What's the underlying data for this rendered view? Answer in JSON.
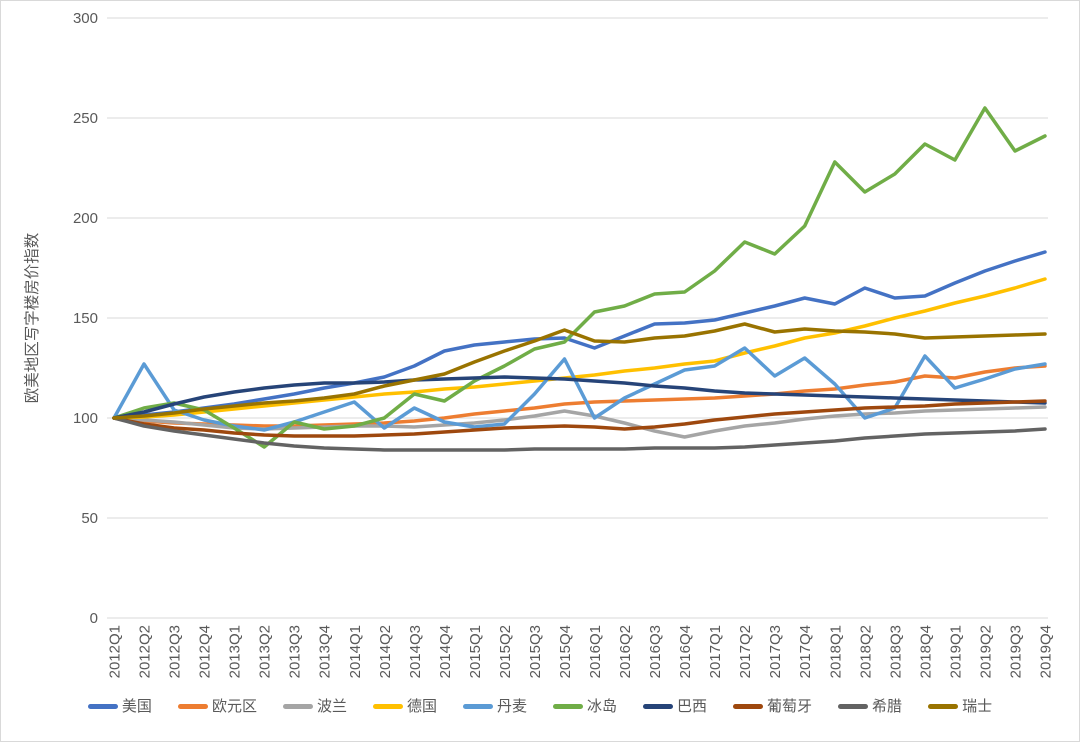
{
  "chart_data": {
    "type": "line",
    "title": "",
    "ylabel": "欧美地区写字楼房价指数",
    "xlabel": "",
    "ylim": [
      0,
      300
    ],
    "yticks": [
      0,
      50,
      100,
      150,
      200,
      250,
      300
    ],
    "grid": "horizontal",
    "gridline_color": "#d9d9d9",
    "text_color": "#595959",
    "legend_position": "bottom",
    "categories": [
      "2012Q1",
      "2012Q2",
      "2012Q3",
      "2012Q4",
      "2013Q1",
      "2013Q2",
      "2013Q3",
      "2013Q4",
      "2014Q1",
      "2014Q2",
      "2014Q3",
      "2014Q4",
      "2015Q1",
      "2015Q2",
      "2015Q3",
      "2015Q4",
      "2016Q1",
      "2016Q2",
      "2016Q3",
      "2016Q4",
      "2017Q1",
      "2017Q2",
      "2017Q3",
      "2017Q4",
      "2018Q1",
      "2018Q2",
      "2018Q3",
      "2018Q4",
      "2019Q1",
      "2019Q2",
      "2019Q3",
      "2019Q4"
    ],
    "series": [
      {
        "key": "usa",
        "name": "美国",
        "color": "#4472C4",
        "values": [
          100,
          101.5,
          103,
          105,
          107,
          109.5,
          112,
          115,
          117.5,
          120.5,
          126,
          133.5,
          136.5,
          138,
          139.5,
          140,
          135,
          141,
          147,
          147.5,
          149,
          152.5,
          156,
          160,
          157,
          165,
          160,
          161,
          167.5,
          173.5,
          178.5,
          183
        ]
      },
      {
        "key": "eurozone",
        "name": "欧元区",
        "color": "#ED7D31",
        "values": [
          100,
          98.5,
          97.5,
          97,
          96.5,
          96,
          96,
          96.5,
          97,
          97.5,
          98.5,
          100,
          102,
          103.5,
          105,
          107,
          108,
          108.5,
          109,
          109.5,
          110,
          111,
          112,
          113.5,
          114.5,
          116.5,
          118,
          121,
          120,
          123,
          125,
          126
        ]
      },
      {
        "key": "poland",
        "name": "波兰",
        "color": "#A5A5A5",
        "values": [
          100,
          99,
          98,
          96.5,
          95,
          94.5,
          95,
          95.5,
          96,
          96,
          95.5,
          96.5,
          97.5,
          99,
          101,
          103.5,
          101,
          97.5,
          93.5,
          90.5,
          93.5,
          96,
          97.5,
          99.5,
          101,
          102,
          102.5,
          103.5,
          104,
          104.5,
          105,
          105.5
        ]
      },
      {
        "key": "germany",
        "name": "德国",
        "color": "#FFC000",
        "values": [
          100,
          100.5,
          101.5,
          103,
          104.5,
          106,
          107.5,
          109,
          110.5,
          112,
          113,
          114.5,
          115.5,
          117,
          118.5,
          120,
          121.5,
          123.5,
          125,
          127,
          128.5,
          132.5,
          136,
          140,
          142.5,
          146,
          150,
          153.5,
          157.5,
          161,
          165,
          169.5
        ]
      },
      {
        "key": "denmark",
        "name": "丹麦",
        "color": "#5B9BD5",
        "values": [
          100,
          127,
          104,
          99,
          96,
          94,
          98,
          103,
          108,
          95,
          105,
          98,
          95.5,
          97,
          112,
          129.5,
          100,
          110,
          117,
          124,
          126,
          135,
          121,
          130,
          117,
          100,
          105,
          131,
          115,
          119.5,
          124.5,
          127
        ]
      },
      {
        "key": "iceland",
        "name": "冰岛",
        "color": "#70AD47",
        "values": [
          100,
          105,
          107.5,
          104,
          95,
          85.5,
          98,
          94.5,
          96,
          100,
          112,
          108.5,
          118.5,
          126,
          134.5,
          138,
          153,
          156,
          162,
          163,
          173.5,
          188,
          182,
          196,
          228,
          213,
          222,
          237,
          229,
          255,
          233.5,
          241
        ]
      },
      {
        "key": "brazil",
        "name": "巴西",
        "color": "#264478",
        "values": [
          100,
          103,
          107,
          110.5,
          113,
          115,
          116.5,
          117.5,
          117.5,
          118,
          119,
          119.5,
          120,
          120.5,
          120,
          119.5,
          118.5,
          117.5,
          116,
          115,
          113.5,
          112.5,
          112,
          111.5,
          111,
          110.5,
          110,
          109.5,
          109,
          108.5,
          108,
          107.5
        ]
      },
      {
        "key": "portugal",
        "name": "葡萄牙",
        "color": "#9E480E",
        "values": [
          100,
          97,
          95,
          94,
          92.5,
          91.5,
          91,
          91,
          91,
          91.5,
          92,
          93,
          94,
          95,
          95.5,
          96,
          95.5,
          94.5,
          95.5,
          97,
          99,
          100.5,
          102,
          103,
          104,
          105,
          105.5,
          106,
          107,
          107.5,
          108,
          108.5
        ]
      },
      {
        "key": "greece",
        "name": "希腊",
        "color": "#636363",
        "values": [
          100,
          96,
          93.5,
          91.5,
          89.5,
          87.5,
          86,
          85,
          84.5,
          84,
          84,
          84,
          84,
          84,
          84.5,
          84.5,
          84.5,
          84.5,
          85,
          85,
          85,
          85.5,
          86.5,
          87.5,
          88.5,
          90,
          91,
          92,
          92.5,
          93,
          93.5,
          94.5
        ]
      },
      {
        "key": "switzerland",
        "name": "瑞士",
        "color": "#997300",
        "values": [
          100,
          101,
          102.5,
          104.5,
          106,
          107.5,
          108.5,
          110,
          112,
          116,
          119,
          122,
          128,
          133.5,
          138.5,
          144,
          138.5,
          138,
          140,
          141,
          143.5,
          147,
          143,
          144.5,
          143.5,
          143,
          142,
          140,
          140.5,
          141,
          141.5,
          142
        ]
      }
    ]
  }
}
